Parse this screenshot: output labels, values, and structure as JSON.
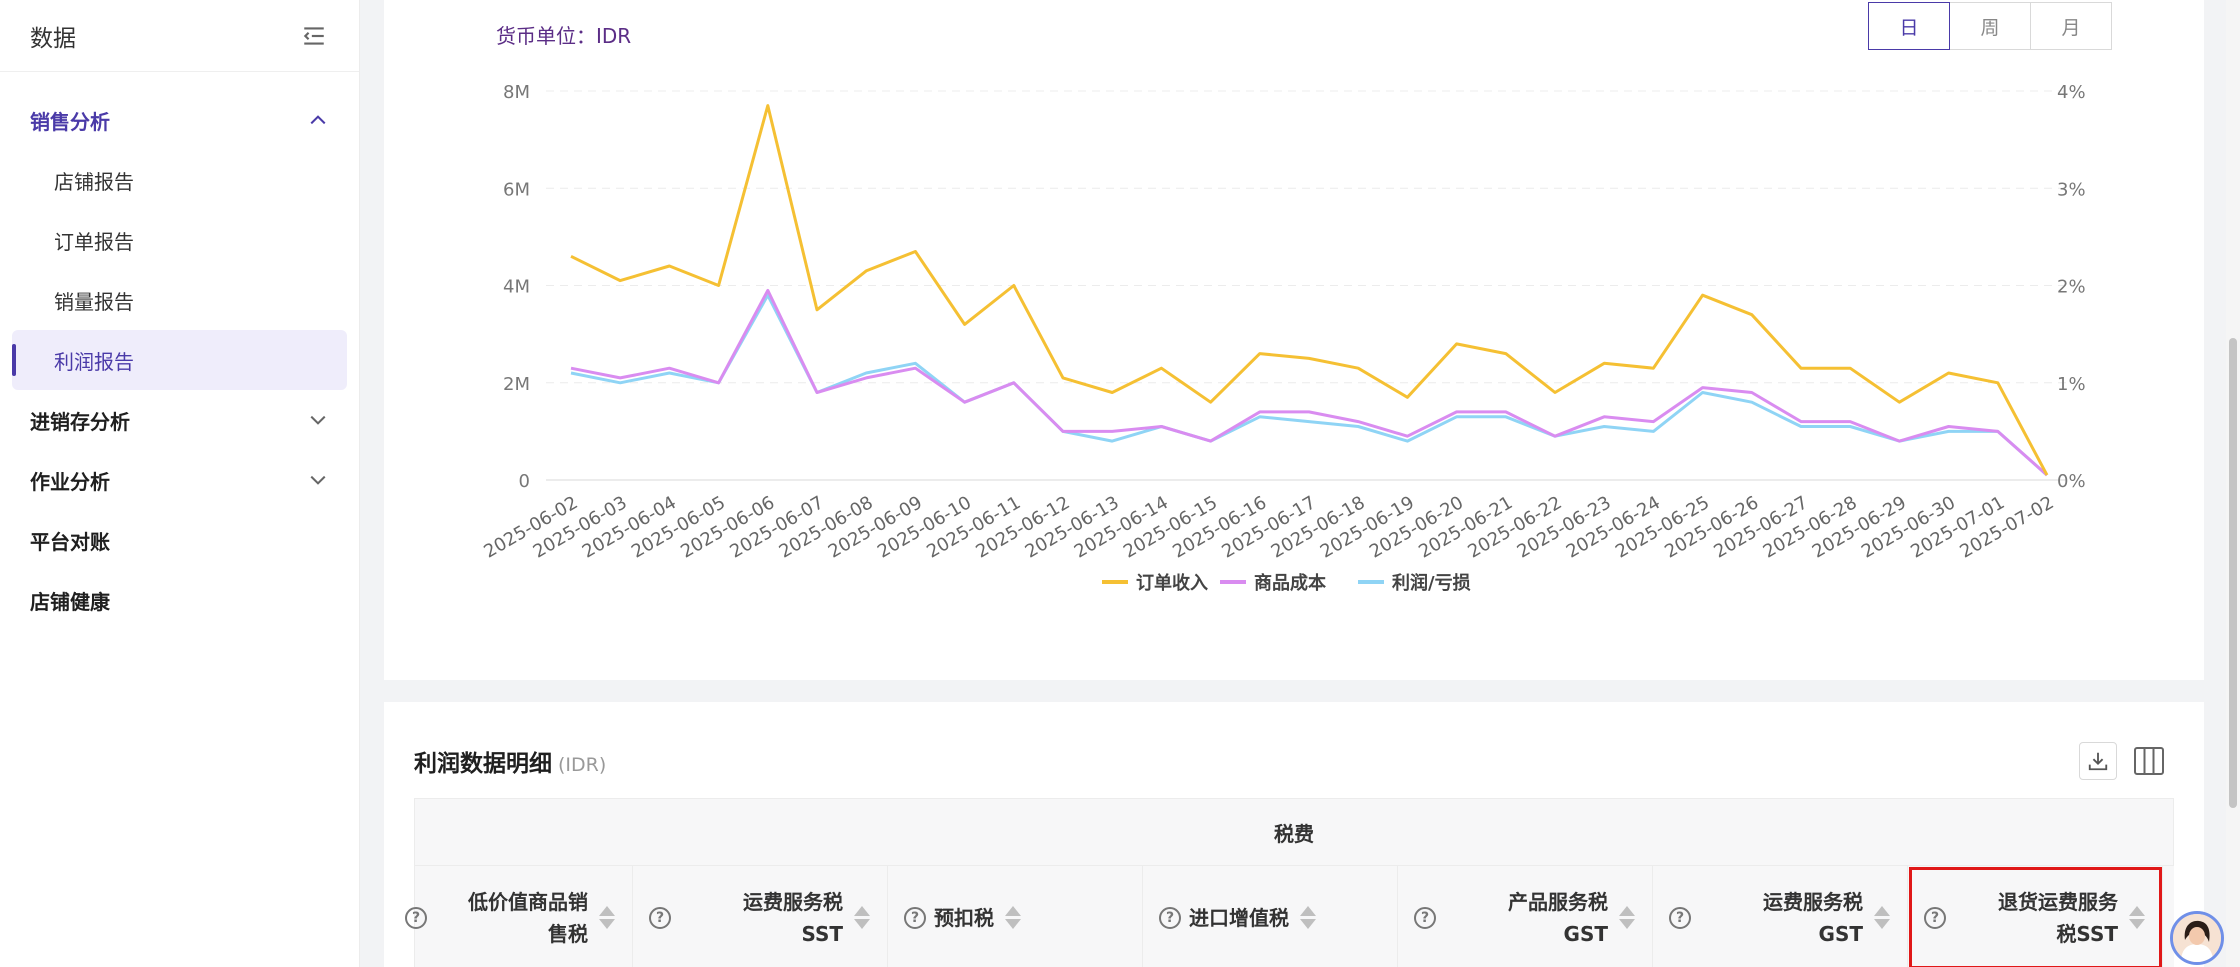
{
  "sidebar": {
    "title": "数据",
    "groups": [
      {
        "label": "销售分析",
        "expanded": true
      },
      {
        "label": "进销存分析"
      },
      {
        "label": "作业分析"
      },
      {
        "label": "平台对账"
      },
      {
        "label": "店铺健康"
      }
    ],
    "sub_items": [
      "店铺报告",
      "订单报告",
      "销量报告",
      "利润报告"
    ],
    "selected": "利润报告"
  },
  "chart_header": {
    "currency_label": "货币单位：IDR",
    "period_buttons": [
      "日",
      "周",
      "月"
    ],
    "period_selected": "日"
  },
  "chart_data": {
    "type": "line",
    "x": [
      "2025-06-02",
      "2025-06-03",
      "2025-06-04",
      "2025-06-05",
      "2025-06-06",
      "2025-06-07",
      "2025-06-08",
      "2025-06-09",
      "2025-06-10",
      "2025-06-11",
      "2025-06-12",
      "2025-06-13",
      "2025-06-14",
      "2025-06-15",
      "2025-06-16",
      "2025-06-17",
      "2025-06-18",
      "2025-06-19",
      "2025-06-20",
      "2025-06-21",
      "2025-06-22",
      "2025-06-23",
      "2025-06-24",
      "2025-06-25",
      "2025-06-26",
      "2025-06-27",
      "2025-06-28",
      "2025-06-29",
      "2025-06-30",
      "2025-07-01",
      "2025-07-02"
    ],
    "series": [
      {
        "name": "订单收入",
        "color": "#f5c033",
        "values": [
          4.6,
          4.1,
          4.4,
          4.0,
          7.7,
          3.5,
          4.3,
          4.7,
          3.2,
          4.0,
          2.1,
          1.8,
          2.3,
          1.6,
          2.6,
          2.5,
          2.3,
          1.7,
          2.8,
          2.6,
          1.8,
          2.4,
          2.3,
          3.8,
          3.4,
          2.3,
          2.3,
          1.6,
          2.2,
          2.0,
          0.1
        ]
      },
      {
        "name": "商品成本",
        "color": "#d98cf0",
        "values": [
          2.3,
          2.1,
          2.3,
          2.0,
          3.9,
          1.8,
          2.1,
          2.3,
          1.6,
          2.0,
          1.0,
          1.0,
          1.1,
          0.8,
          1.4,
          1.4,
          1.2,
          0.9,
          1.4,
          1.4,
          0.9,
          1.3,
          1.2,
          1.9,
          1.8,
          1.2,
          1.2,
          0.8,
          1.1,
          1.0,
          0.1
        ]
      },
      {
        "name": "利润/亏损",
        "color": "#8fd4f5",
        "values": [
          2.2,
          2.0,
          2.2,
          2.0,
          3.8,
          1.8,
          2.2,
          2.4,
          1.6,
          2.0,
          1.0,
          0.8,
          1.1,
          0.8,
          1.3,
          1.2,
          1.1,
          0.8,
          1.3,
          1.3,
          0.9,
          1.1,
          1.0,
          1.8,
          1.6,
          1.1,
          1.1,
          0.8,
          1.0,
          1.0,
          0.1
        ]
      }
    ],
    "y_unit": "M",
    "ylim": [
      0,
      8
    ],
    "y_ticks": [
      "0",
      "2M",
      "4M",
      "6M",
      "8M"
    ],
    "y2_ticks": [
      "0%",
      "1%",
      "2%",
      "3%",
      "4%"
    ],
    "grid": true,
    "legend": "bottom-center"
  },
  "table": {
    "title": "利润数据明细",
    "unit": "(IDR)",
    "group_header": "税费",
    "columns": [
      {
        "label": "低价值商品销售税"
      },
      {
        "label": "运费服务税SST"
      },
      {
        "label": "预扣税"
      },
      {
        "label": "进口增值税"
      },
      {
        "label": "产品服务税GST"
      },
      {
        "label": "运费服务税GST"
      },
      {
        "label": "退货运费服务税SST"
      }
    ]
  }
}
